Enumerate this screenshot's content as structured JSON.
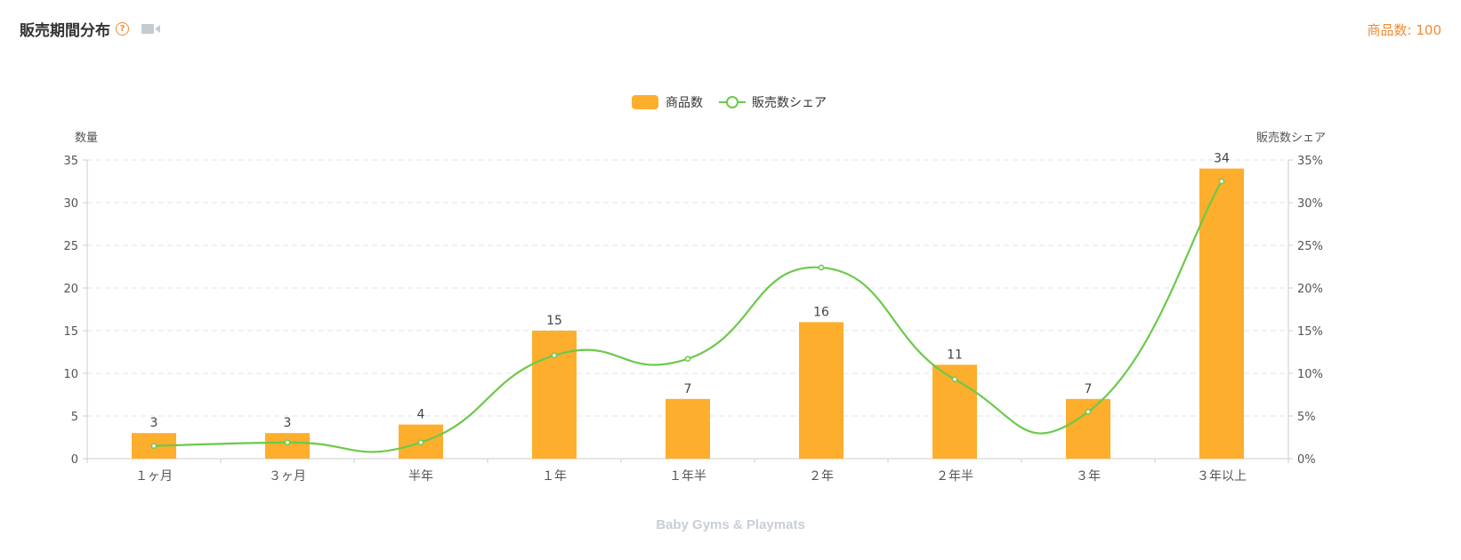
{
  "header": {
    "title": "販売期間分布",
    "help": "?",
    "total_label": "商品数: 100"
  },
  "footer": {
    "category": "Baby Gyms & Playmats"
  },
  "colors": {
    "bar": "#fdae2d",
    "line": "#6cc94a",
    "accent": "#f28a30"
  },
  "chart_data": {
    "type": "bar",
    "categories": [
      "１ヶ月",
      "３ヶ月",
      "半年",
      "１年",
      "１年半",
      "２年",
      "２年半",
      "３年",
      "３年以上"
    ],
    "series": [
      {
        "name": "商品数",
        "type": "bar",
        "axis": "left",
        "values": [
          3,
          3,
          4,
          15,
          7,
          16,
          11,
          7,
          34
        ]
      },
      {
        "name": "販売数シェア",
        "type": "line",
        "axis": "right",
        "smooth": true,
        "values": [
          1.5,
          1.9,
          1.9,
          12.1,
          11.7,
          22.4,
          9.3,
          5.5,
          32.5
        ]
      }
    ],
    "ylabel": "数量",
    "ylabel_right": "販売数シェア",
    "ylim": [
      0,
      35
    ],
    "yticks": [
      0,
      5,
      10,
      15,
      20,
      25,
      30,
      35
    ],
    "ylim_right": [
      0,
      35
    ],
    "yticks_right": [
      "0%",
      "5%",
      "10%",
      "15%",
      "20%",
      "25%",
      "30%",
      "35%"
    ],
    "grid": "dashed horizontal",
    "legend_position": "top-center"
  }
}
